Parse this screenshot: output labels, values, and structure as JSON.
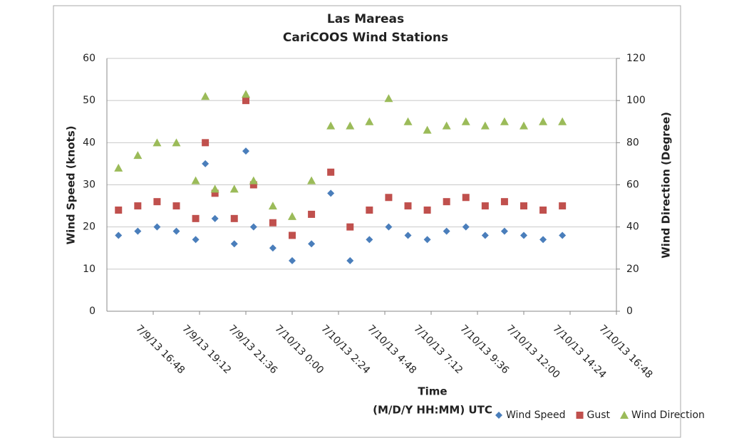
{
  "chart_data": {
    "type": "scatter",
    "title": "Las Mareas",
    "subtitle": "CariCOOS Wind Stations",
    "xlabel": [
      "Time",
      "(M/D/Y HH:MM) UTC"
    ],
    "ylabel": "Wind Speed (knots)",
    "y2label": "Wind Direction (Degree)",
    "x": [
      "7/9/13 15:00",
      "7/9/13 16:00",
      "7/9/13 17:00",
      "7/9/13 18:00",
      "7/9/13 19:00",
      "7/9/13 19:30",
      "7/9/13 20:00",
      "7/9/13 21:00",
      "7/9/13 21:36",
      "7/9/13 22:00",
      "7/9/13 23:00",
      "7/10/13 0:00",
      "7/10/13 1:00",
      "7/10/13 2:00",
      "7/10/13 3:00",
      "7/10/13 4:00",
      "7/10/13 5:00",
      "7/10/13 6:00",
      "7/10/13 7:00",
      "7/10/13 8:00",
      "7/10/13 9:00",
      "7/10/13 10:00",
      "7/10/13 11:00",
      "7/10/13 12:00",
      "7/10/13 13:00",
      "7/10/13 14:00"
    ],
    "series": [
      {
        "name": "Wind Speed",
        "color": "#4a7ebb",
        "marker": "diamond",
        "values": [
          18,
          19,
          20,
          19,
          17,
          35,
          22,
          16,
          38,
          20,
          15,
          12,
          16,
          28,
          12,
          17,
          20,
          18,
          17,
          19,
          20,
          18,
          19,
          18,
          17,
          18
        ]
      },
      {
        "name": "Gust",
        "color": "#c0504d",
        "marker": "square",
        "values": [
          24,
          25,
          26,
          25,
          22,
          40,
          28,
          22,
          50,
          30,
          21,
          18,
          23,
          33,
          20,
          24,
          27,
          25,
          24,
          26,
          27,
          25,
          26,
          25,
          24,
          25
        ]
      },
      {
        "name": "Wind Direction",
        "color": "#9bbb59",
        "marker": "triangle",
        "axis": "y2",
        "values": [
          68,
          74,
          80,
          80,
          62,
          102,
          58,
          58,
          103,
          62,
          50,
          45,
          62,
          88,
          88,
          90,
          101,
          90,
          86,
          88,
          90,
          88,
          90,
          88,
          90,
          90
        ]
      }
    ],
    "xlim": [
      "7/9/13 14:24",
      "7/10/13 16:48"
    ],
    "xticks": [
      "7/9/13 16:48",
      "7/9/13 19:12",
      "7/9/13 21:36",
      "7/10/13 0:00",
      "7/10/13 2:24",
      "7/10/13 4:48",
      "7/10/13 7:12",
      "7/10/13 9:36",
      "7/10/13 12:00",
      "7/10/13 14:24",
      "7/10/13 16:48"
    ],
    "ylim": [
      0,
      60
    ],
    "yticks": [
      0,
      10,
      20,
      30,
      40,
      50,
      60
    ],
    "y2lim": [
      0,
      120
    ],
    "y2ticks": [
      0,
      20,
      40,
      60,
      80,
      100,
      120
    ],
    "grid": true,
    "legend": "bottom-right"
  }
}
